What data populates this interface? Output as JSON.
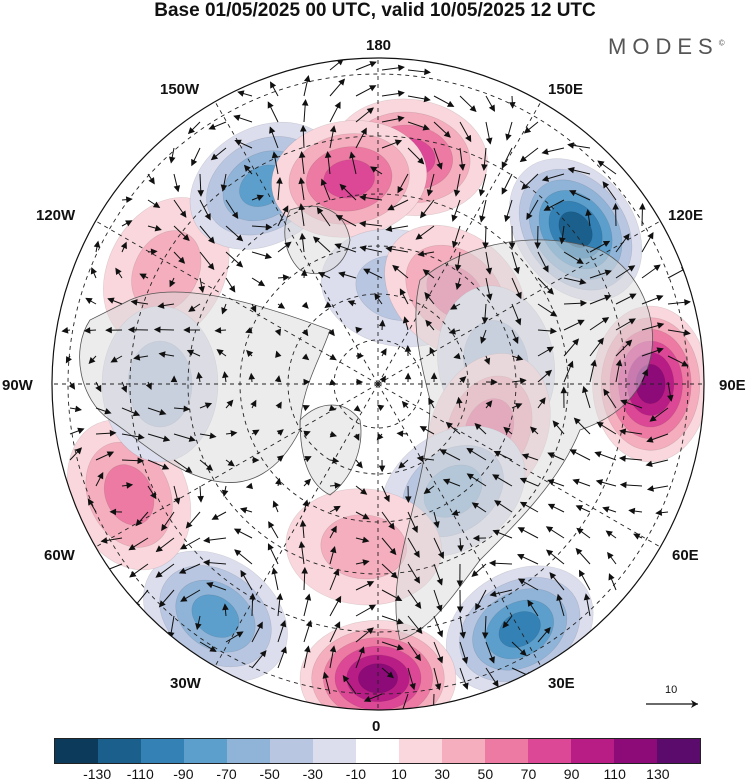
{
  "title": "Base 01/05/2025 00 UTC, valid 10/05/2025 12 UTC",
  "brand": "MODES",
  "brand_mark": "©",
  "longitude_labels": {
    "top": "180",
    "bottom": "0",
    "left": "90W",
    "right": "90E",
    "nw1": "150W",
    "nw2": "120W",
    "ne1": "150E",
    "ne2": "120E",
    "sw1": "60W",
    "sw2": "30W",
    "se1": "60E",
    "se2": "30E"
  },
  "reference_vector": {
    "label": "10"
  },
  "colorbar": {
    "colors": [
      "#0b3a5a",
      "#1b5f8c",
      "#3381b5",
      "#5d9fcc",
      "#8fb4d8",
      "#b8c6e1",
      "#dcdeee",
      "#ffffff",
      "#f9d7dc",
      "#f4aebd",
      "#ec7aa2",
      "#dc4896",
      "#b81d86",
      "#8c0b78",
      "#5a0b6b"
    ],
    "ticks": [
      "-130",
      "-110",
      "-90",
      "-70",
      "-50",
      "-30",
      "-10",
      "10",
      "30",
      "50",
      "70",
      "90",
      "110",
      "130"
    ]
  },
  "anomaly_centers": [
    {
      "lon": 172,
      "lat": 48,
      "value": 70
    },
    {
      "lon": 128,
      "lat": 44,
      "value": -110
    },
    {
      "lon": 90,
      "lat": 40,
      "value": 110
    },
    {
      "lon": 30,
      "lat": 38,
      "value": -90
    },
    {
      "lon": 0,
      "lat": 36,
      "value": 110
    },
    {
      "lon": -35,
      "lat": 38,
      "value": -70
    },
    {
      "lon": -66,
      "lat": 40,
      "value": 50
    },
    {
      "lon": -118,
      "lat": 46,
      "value": 30
    },
    {
      "lon": -150,
      "lat": 48,
      "value": -70
    },
    {
      "lon": -172,
      "lat": 52,
      "value": 70
    },
    {
      "lon": 168,
      "lat": 72,
      "value": -30
    },
    {
      "lon": 140,
      "lat": 68,
      "value": 50
    },
    {
      "lon": 100,
      "lat": 68,
      "value": -30
    },
    {
      "lon": 68,
      "lat": 68,
      "value": 50
    },
    {
      "lon": 35,
      "lat": 66,
      "value": -50
    },
    {
      "lon": -5,
      "lat": 60,
      "value": 30
    },
    {
      "lon": -90,
      "lat": 50,
      "value": -30
    }
  ]
}
